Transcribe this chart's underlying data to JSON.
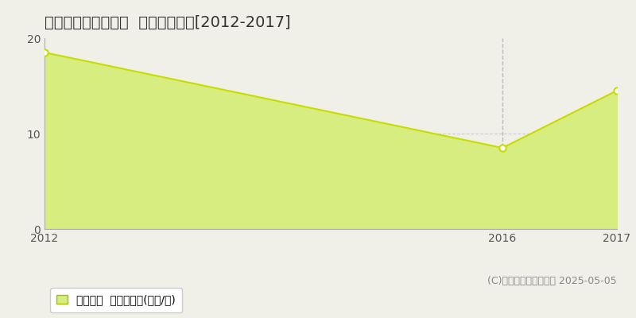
{
  "title": "加古郡播磨町北古田  土地価格推移[2012-2017]",
  "years": [
    2012,
    2016,
    2017
  ],
  "values": [
    18.5,
    8.5,
    14.5
  ],
  "xlim": [
    2012,
    2017
  ],
  "ylim": [
    0,
    20
  ],
  "yticks": [
    0,
    10,
    20
  ],
  "xticks": [
    2012,
    2016,
    2017
  ],
  "line_color": "#c8dc00",
  "fill_color": "#d8ed80",
  "marker_color": "#ffffff",
  "marker_edge_color": "#c8dc00",
  "vline_x": 2016,
  "vline_color": "#bbbbbb",
  "grid_color": "#cccccc",
  "background_color": "#f0f0e8",
  "plot_bg_color": "#f0f0e8",
  "legend_text": "土地価格  平均坪単価(万円/坪)",
  "copyright_text": "(C)土地価格ドットコム 2025-05-05",
  "title_fontsize": 14,
  "axis_fontsize": 10,
  "legend_fontsize": 10,
  "copyright_fontsize": 9
}
